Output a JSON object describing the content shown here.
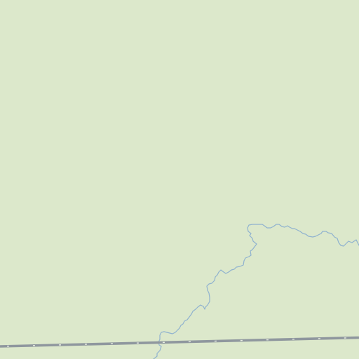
{
  "map": {
    "colors": {
      "land": "#dce8cb",
      "water": "#8fb2cf",
      "railway_casing": "#8f979e",
      "railway_dash": "#e9eee4"
    },
    "features": [
      {
        "kind": "stream"
      },
      {
        "kind": "railway"
      }
    ]
  }
}
